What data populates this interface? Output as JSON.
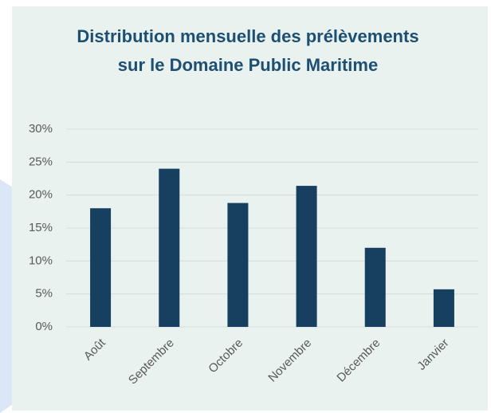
{
  "chart_data": {
    "type": "bar",
    "title": "Distribution mensuelle des prélèvements sur le Domaine Public Maritime",
    "categories": [
      "Août",
      "Septembre",
      "Octobre",
      "Novembre",
      "Décembre",
      "Janvier"
    ],
    "values": [
      18,
      24,
      18.8,
      21.4,
      12,
      5.7
    ],
    "color": "#173f5f",
    "ylim": [
      0,
      30
    ],
    "yticks": [
      {
        "value": 0,
        "label": "0%"
      },
      {
        "value": 5,
        "label": "5%"
      },
      {
        "value": 10,
        "label": "10%"
      },
      {
        "value": 15,
        "label": "15%"
      },
      {
        "value": 20,
        "label": "20%"
      },
      {
        "value": 25,
        "label": "25%"
      },
      {
        "value": 30,
        "label": "30%"
      }
    ],
    "grid": true
  }
}
